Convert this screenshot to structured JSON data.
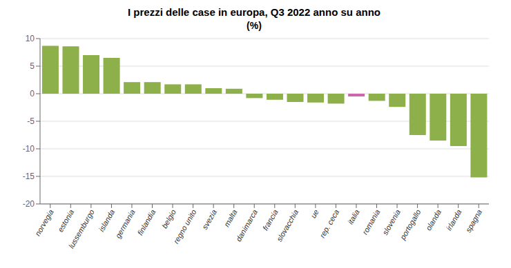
{
  "chart_data": {
    "type": "bar",
    "title": "I prezzi delle case in europa, Q3 2022 anno su anno",
    "subtitle": "(%)",
    "categories": [
      "norvegia",
      "estonia",
      "lussemburgo",
      "islanda",
      "germania",
      "finlandia",
      "belgio",
      "regno unito",
      "svezia",
      "malta",
      "danimarca",
      "francia",
      "slovacchia",
      "ue",
      "rep. ceca",
      "italia",
      "romania",
      "slovenia",
      "portogallo",
      "olanda",
      "irlanda",
      "spagna"
    ],
    "values": [
      8.7,
      8.6,
      7.0,
      6.5,
      2.1,
      2.1,
      1.7,
      1.7,
      1.0,
      0.9,
      -0.8,
      -1.1,
      -1.5,
      -1.6,
      -1.8,
      -0.5,
      -1.3,
      -2.4,
      -7.5,
      -8.5,
      -9.5,
      -15.2
    ],
    "colors": [
      "#8db04b",
      "#8db04b",
      "#8db04b",
      "#8db04b",
      "#8db04b",
      "#8db04b",
      "#8db04b",
      "#8db04b",
      "#8db04b",
      "#8db04b",
      "#8db04b",
      "#8db04b",
      "#8db04b",
      "#8db04b",
      "#8db04b",
      "#cc66aa",
      "#8db04b",
      "#8db04b",
      "#8db04b",
      "#8db04b",
      "#8db04b",
      "#8db04b"
    ],
    "ylim": [
      -20,
      10
    ],
    "yticks": [
      -20,
      -15,
      -10,
      -5,
      0,
      5,
      10
    ],
    "grid": true
  }
}
